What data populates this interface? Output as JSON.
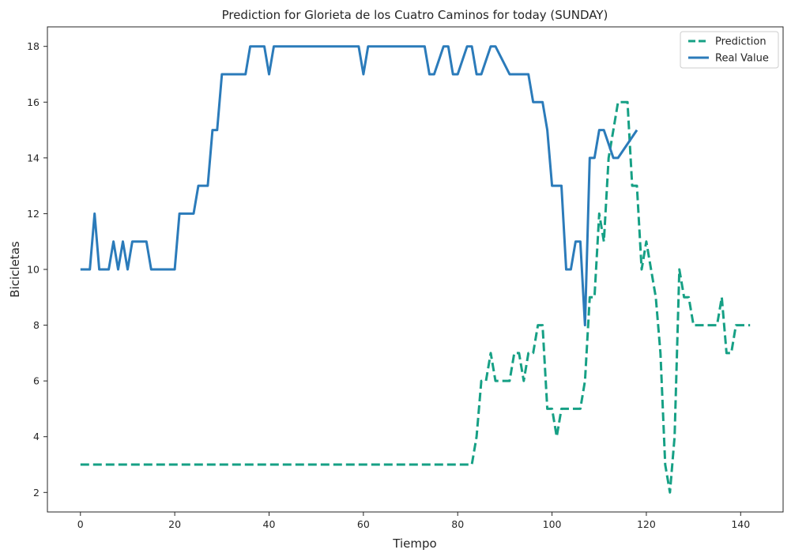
{
  "chart_data": {
    "type": "line",
    "title": "Prediction for Glorieta de los Cuatro Caminos for today (SUNDAY)",
    "xlabel": "Tiempo",
    "ylabel": "Bicicletas",
    "xlim": [
      -7,
      149
    ],
    "ylim": [
      1.3,
      18.7
    ],
    "xticks": [
      0,
      20,
      40,
      60,
      80,
      100,
      120,
      140
    ],
    "yticks": [
      2,
      4,
      6,
      8,
      10,
      12,
      14,
      16,
      18
    ],
    "grid": false,
    "legend": "top-right",
    "series": [
      {
        "name": "Prediction",
        "color": "#16a085",
        "dash": true,
        "x": [
          0,
          83,
          84,
          85,
          86,
          87,
          88,
          91,
          92,
          93,
          94,
          95,
          96,
          97,
          98,
          99,
          100,
          101,
          102,
          103,
          104,
          105,
          106,
          107,
          108,
          109,
          110,
          111,
          112,
          113,
          114,
          115,
          116,
          117,
          118,
          119,
          120,
          121,
          122,
          123,
          124,
          125,
          126,
          127,
          128,
          129,
          130,
          131,
          132,
          133,
          134,
          135,
          136,
          137,
          138,
          139,
          140,
          141,
          142
        ],
        "y": [
          3,
          3,
          4,
          6,
          6,
          7,
          6,
          6,
          7,
          7,
          6,
          7,
          7,
          8,
          8,
          5,
          5,
          4,
          5,
          5,
          5,
          5,
          5,
          6,
          9,
          9,
          12,
          11,
          14,
          15,
          16,
          16,
          16,
          13,
          13,
          10,
          11,
          10,
          9,
          7,
          3,
          2,
          4,
          10,
          9,
          9,
          8,
          8,
          8,
          8,
          8,
          8,
          9,
          7,
          7,
          8,
          8,
          8,
          8
        ]
      },
      {
        "name": "Real Value",
        "color": "#2b7bba",
        "dash": false,
        "x": [
          0,
          2,
          3,
          4,
          6,
          7,
          8,
          9,
          10,
          11,
          14,
          15,
          20,
          21,
          24,
          25,
          27,
          28,
          29,
          30,
          35,
          36,
          39,
          40,
          41,
          59,
          60,
          61,
          72,
          73,
          74,
          75,
          77,
          78,
          79,
          80,
          82,
          83,
          84,
          85,
          87,
          88,
          91,
          92,
          95,
          96,
          97,
          98,
          99,
          100,
          102,
          103,
          104,
          105,
          106,
          107,
          108,
          109,
          110,
          111,
          113,
          114,
          118
        ],
        "y": [
          10,
          10,
          12,
          10,
          10,
          11,
          10,
          11,
          10,
          11,
          11,
          10,
          10,
          12,
          12,
          13,
          13,
          15,
          15,
          17,
          17,
          18,
          18,
          17,
          18,
          18,
          17,
          18,
          18,
          18,
          17,
          17,
          18,
          18,
          17,
          17,
          18,
          18,
          17,
          17,
          18,
          18,
          17,
          17,
          17,
          16,
          16,
          16,
          15,
          13,
          13,
          10,
          10,
          11,
          11,
          8,
          14,
          14,
          15,
          15,
          14,
          14,
          15
        ]
      }
    ]
  }
}
